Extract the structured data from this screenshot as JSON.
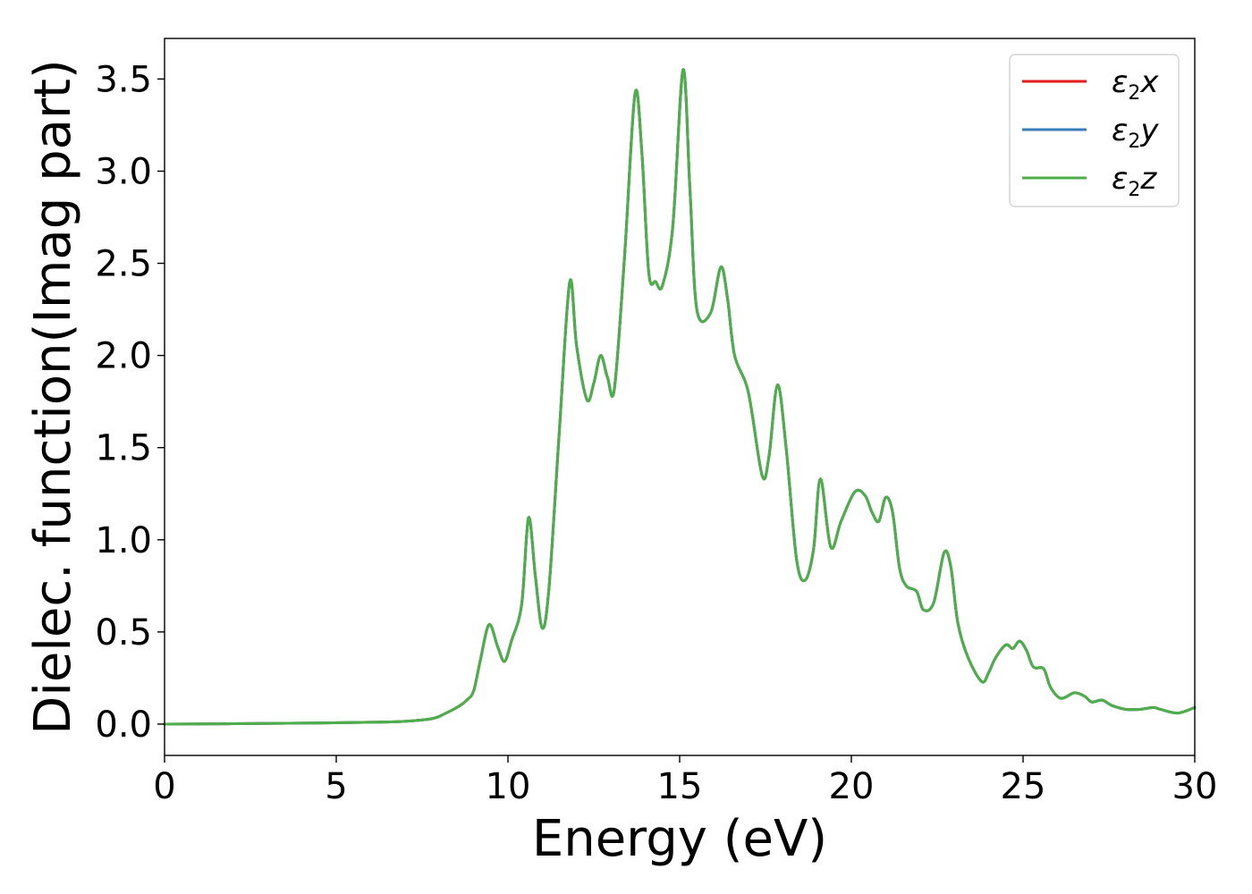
{
  "chart_data": {
    "type": "line",
    "title": "",
    "xlabel": "Energy (eV)",
    "ylabel": "Dielec. function(Imag part)",
    "xlim": [
      0,
      30
    ],
    "ylim": [
      -0.17,
      3.72
    ],
    "xticks": [
      0,
      5,
      10,
      15,
      20,
      25,
      30
    ],
    "xtick_labels": [
      "0",
      "5",
      "10",
      "15",
      "20",
      "25",
      "30"
    ],
    "yticks": [
      0.0,
      0.5,
      1.0,
      1.5,
      2.0,
      2.5,
      3.0,
      3.5
    ],
    "ytick_labels": [
      "0.0",
      "0.5",
      "1.0",
      "1.5",
      "2.0",
      "2.5",
      "3.0",
      "3.5"
    ],
    "grid": false,
    "legend_position": "top-right",
    "series": [
      {
        "name": "ε2x",
        "name_base": "ε",
        "name_sub": "2",
        "name_tail": "x",
        "color": "#e41a1c",
        "x": [
          0,
          2,
          4,
          6,
          7,
          7.8,
          8.2,
          8.6,
          8.8,
          9.0,
          9.2,
          9.45,
          9.7,
          9.9,
          10.1,
          10.4,
          10.6,
          10.8,
          11.0,
          11.2,
          11.5,
          11.8,
          12.0,
          12.3,
          12.5,
          12.7,
          12.9,
          13.1,
          13.4,
          13.7,
          13.9,
          14.1,
          14.3,
          14.5,
          14.8,
          15.1,
          15.3,
          15.5,
          15.9,
          16.2,
          16.4,
          16.6,
          17.0,
          17.4,
          17.6,
          17.85,
          18.1,
          18.4,
          18.65,
          18.9,
          19.1,
          19.4,
          19.7,
          20.1,
          20.4,
          20.6,
          20.8,
          21.0,
          21.2,
          21.4,
          21.6,
          21.9,
          22.1,
          22.4,
          22.7,
          22.9,
          23.1,
          23.4,
          23.8,
          24.0,
          24.2,
          24.5,
          24.7,
          24.9,
          25.1,
          25.3,
          25.6,
          25.8,
          26.1,
          26.5,
          26.8,
          27.0,
          27.3,
          27.6,
          28.0,
          28.4,
          28.8,
          29.0,
          29.5,
          30.0
        ],
        "y": [
          0.0,
          0.002,
          0.005,
          0.01,
          0.015,
          0.03,
          0.06,
          0.1,
          0.13,
          0.18,
          0.35,
          0.54,
          0.42,
          0.34,
          0.45,
          0.65,
          1.12,
          0.8,
          0.52,
          0.75,
          1.6,
          2.4,
          2.05,
          1.76,
          1.85,
          2.0,
          1.88,
          1.82,
          2.55,
          3.42,
          3.1,
          2.45,
          2.4,
          2.38,
          2.7,
          3.55,
          2.9,
          2.25,
          2.23,
          2.48,
          2.3,
          2.0,
          1.8,
          1.35,
          1.45,
          1.84,
          1.5,
          0.9,
          0.78,
          0.95,
          1.33,
          0.96,
          1.1,
          1.26,
          1.24,
          1.15,
          1.1,
          1.23,
          1.15,
          0.85,
          0.75,
          0.72,
          0.62,
          0.66,
          0.93,
          0.85,
          0.55,
          0.36,
          0.23,
          0.28,
          0.36,
          0.43,
          0.41,
          0.45,
          0.4,
          0.31,
          0.3,
          0.2,
          0.14,
          0.17,
          0.15,
          0.12,
          0.13,
          0.1,
          0.08,
          0.08,
          0.09,
          0.08,
          0.06,
          0.09
        ]
      },
      {
        "name": "ε2y",
        "name_base": "ε",
        "name_sub": "2",
        "name_tail": "y",
        "color": "#377eb8",
        "x": [
          0,
          2,
          4,
          6,
          7,
          7.8,
          8.2,
          8.6,
          8.8,
          9.0,
          9.2,
          9.45,
          9.7,
          9.9,
          10.1,
          10.4,
          10.6,
          10.8,
          11.0,
          11.2,
          11.5,
          11.8,
          12.0,
          12.3,
          12.5,
          12.7,
          12.9,
          13.1,
          13.4,
          13.7,
          13.9,
          14.1,
          14.3,
          14.5,
          14.8,
          15.1,
          15.3,
          15.5,
          15.9,
          16.2,
          16.4,
          16.6,
          17.0,
          17.4,
          17.6,
          17.85,
          18.1,
          18.4,
          18.65,
          18.9,
          19.1,
          19.4,
          19.7,
          20.1,
          20.4,
          20.6,
          20.8,
          21.0,
          21.2,
          21.4,
          21.6,
          21.9,
          22.1,
          22.4,
          22.7,
          22.9,
          23.1,
          23.4,
          23.8,
          24.0,
          24.2,
          24.5,
          24.7,
          24.9,
          25.1,
          25.3,
          25.6,
          25.8,
          26.1,
          26.5,
          26.8,
          27.0,
          27.3,
          27.6,
          28.0,
          28.4,
          28.8,
          29.0,
          29.5,
          30.0
        ],
        "y": [
          0.0,
          0.002,
          0.005,
          0.01,
          0.015,
          0.03,
          0.06,
          0.1,
          0.13,
          0.18,
          0.35,
          0.54,
          0.42,
          0.34,
          0.45,
          0.65,
          1.12,
          0.8,
          0.52,
          0.75,
          1.6,
          2.4,
          2.05,
          1.76,
          1.85,
          2.0,
          1.88,
          1.82,
          2.55,
          3.42,
          3.1,
          2.45,
          2.4,
          2.38,
          2.7,
          3.55,
          2.9,
          2.25,
          2.23,
          2.48,
          2.3,
          2.0,
          1.8,
          1.35,
          1.45,
          1.84,
          1.5,
          0.9,
          0.78,
          0.95,
          1.33,
          0.96,
          1.1,
          1.26,
          1.24,
          1.15,
          1.1,
          1.23,
          1.15,
          0.85,
          0.75,
          0.72,
          0.62,
          0.66,
          0.93,
          0.85,
          0.55,
          0.36,
          0.23,
          0.28,
          0.36,
          0.43,
          0.41,
          0.45,
          0.4,
          0.31,
          0.3,
          0.2,
          0.14,
          0.17,
          0.15,
          0.12,
          0.13,
          0.1,
          0.08,
          0.08,
          0.09,
          0.08,
          0.06,
          0.09
        ]
      },
      {
        "name": "ε2z",
        "name_base": "ε",
        "name_sub": "2",
        "name_tail": "z",
        "color": "#4daf4a",
        "x": [
          0,
          2,
          4,
          6,
          7,
          7.8,
          8.2,
          8.6,
          8.8,
          9.0,
          9.2,
          9.45,
          9.7,
          9.9,
          10.1,
          10.4,
          10.6,
          10.8,
          11.0,
          11.2,
          11.5,
          11.8,
          12.0,
          12.3,
          12.5,
          12.7,
          12.9,
          13.1,
          13.4,
          13.7,
          13.9,
          14.1,
          14.3,
          14.5,
          14.8,
          15.1,
          15.3,
          15.5,
          15.9,
          16.2,
          16.4,
          16.6,
          17.0,
          17.4,
          17.6,
          17.85,
          18.1,
          18.4,
          18.65,
          18.9,
          19.1,
          19.4,
          19.7,
          20.1,
          20.4,
          20.6,
          20.8,
          21.0,
          21.2,
          21.4,
          21.6,
          21.9,
          22.1,
          22.4,
          22.7,
          22.9,
          23.1,
          23.4,
          23.8,
          24.0,
          24.2,
          24.5,
          24.7,
          24.9,
          25.1,
          25.3,
          25.6,
          25.8,
          26.1,
          26.5,
          26.8,
          27.0,
          27.3,
          27.6,
          28.0,
          28.4,
          28.8,
          29.0,
          29.5,
          30.0
        ],
        "y": [
          0.0,
          0.002,
          0.005,
          0.01,
          0.015,
          0.03,
          0.06,
          0.1,
          0.13,
          0.18,
          0.35,
          0.54,
          0.42,
          0.34,
          0.45,
          0.65,
          1.12,
          0.8,
          0.52,
          0.75,
          1.6,
          2.4,
          2.05,
          1.76,
          1.85,
          2.0,
          1.88,
          1.82,
          2.55,
          3.42,
          3.1,
          2.45,
          2.4,
          2.38,
          2.7,
          3.55,
          2.9,
          2.25,
          2.23,
          2.48,
          2.3,
          2.0,
          1.8,
          1.35,
          1.45,
          1.84,
          1.5,
          0.9,
          0.78,
          0.95,
          1.33,
          0.96,
          1.1,
          1.26,
          1.24,
          1.15,
          1.1,
          1.23,
          1.15,
          0.85,
          0.75,
          0.72,
          0.62,
          0.66,
          0.93,
          0.85,
          0.55,
          0.36,
          0.23,
          0.28,
          0.36,
          0.43,
          0.41,
          0.45,
          0.4,
          0.31,
          0.3,
          0.2,
          0.14,
          0.17,
          0.15,
          0.12,
          0.13,
          0.1,
          0.08,
          0.08,
          0.09,
          0.08,
          0.06,
          0.09
        ]
      }
    ]
  }
}
